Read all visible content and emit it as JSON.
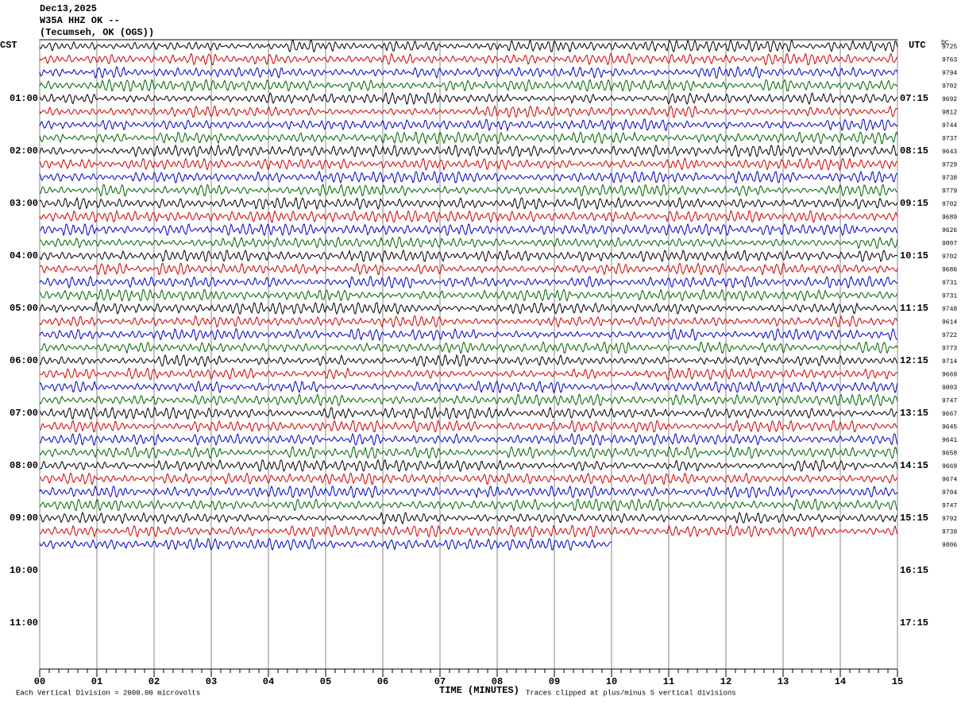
{
  "header": {
    "date": "Dec13,2025",
    "station": "W35A HHZ OK --",
    "location": "(Tecumseh, OK (OGS))"
  },
  "left_axis": {
    "label": "CST",
    "times": [
      "01:00",
      "02:00",
      "03:00",
      "04:00",
      "05:00",
      "06:00",
      "07:00",
      "08:00",
      "09:00",
      "10:00",
      "11:00"
    ]
  },
  "right_axis": {
    "label": "UTC",
    "times": [
      "07:15",
      "08:15",
      "09:15",
      "10:15",
      "11:15",
      "12:15",
      "13:15",
      "14:15",
      "15:15",
      "16:15",
      "17:15"
    ]
  },
  "dc_label": "DC",
  "dc_values": [
    "9725",
    "9763",
    "9794",
    "9702",
    "9692",
    "9812",
    "9744",
    "9737",
    "9643",
    "9729",
    "9738",
    "9779",
    "9702",
    "9689",
    "9626",
    "9807",
    "9702",
    "9686",
    "9731",
    "9731",
    "9748",
    "9614",
    "9722",
    "9773",
    "9714",
    "9669",
    "9803",
    "9747",
    "9667",
    "9645",
    "9641",
    "9658",
    "9669",
    "9674",
    "9704",
    "9747",
    "9792",
    "9739",
    "9806"
  ],
  "trace_colors": [
    "#000000",
    "#d00000",
    "#0000c8",
    "#006400"
  ],
  "x_axis": {
    "ticks": [
      "00",
      "01",
      "02",
      "03",
      "04",
      "05",
      "06",
      "07",
      "08",
      "09",
      "10",
      "11",
      "12",
      "13",
      "14",
      "15"
    ],
    "label": "TIME (MINUTES)"
  },
  "footer": {
    "left": "Each Vertical Division = 2000.00 microvolts",
    "right": "Traces clipped at plus/minus 5 vertical divisions"
  }
}
